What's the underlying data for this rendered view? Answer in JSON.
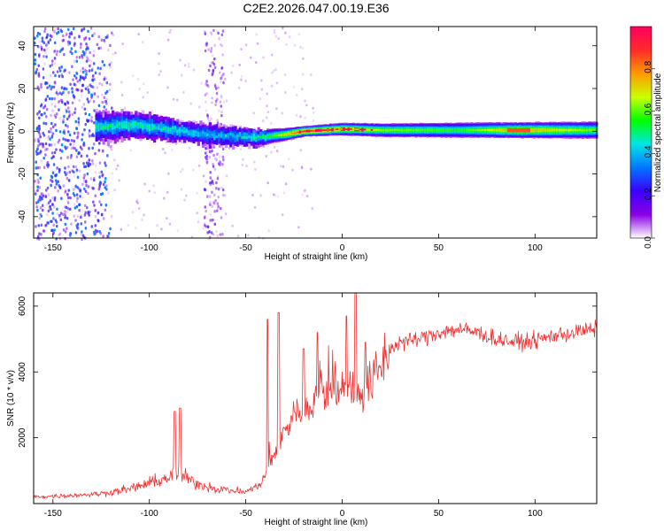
{
  "colors": {
    "snr_line": "#f03030",
    "colormap": [
      "#ffffff",
      "#8a00e6",
      "#3a00ff",
      "#0077ff",
      "#00e6e6",
      "#00ff00",
      "#ccff00",
      "#ff9900",
      "#ff2a2a",
      "#ff0060"
    ]
  },
  "chart_data": [
    {
      "type": "heatmap",
      "title": "C2E2.2026.047.00.19.E36",
      "xlabel": "Height of straight line (km)",
      "ylabel": "Frequency (Hz)",
      "xlim": [
        -160,
        132
      ],
      "ylim": [
        -50,
        49
      ],
      "xticks": [
        "-150",
        "-100",
        "-50",
        "0",
        "50",
        "100"
      ],
      "xtick_values": [
        -150,
        -100,
        -50,
        0,
        50,
        100
      ],
      "yticks": [
        "-40",
        "-20",
        "0",
        "20",
        "40"
      ],
      "ytick_values": [
        -40,
        -20,
        0,
        20,
        40
      ],
      "colorbar": {
        "label": "Normalized spectral amplitude",
        "range": [
          0,
          1
        ],
        "ticks": [
          "0.0",
          "0.2",
          "0.4",
          "0.6",
          "0.8"
        ],
        "tick_values": [
          0,
          0.2,
          0.4,
          0.6,
          0.8
        ]
      },
      "band": {
        "center_hz": [
          [
            -125,
            2
          ],
          [
            -110,
            3
          ],
          [
            -95,
            1.5
          ],
          [
            -80,
            -0.5
          ],
          [
            -65,
            -2
          ],
          [
            -55,
            -2.5
          ],
          [
            -45,
            -3
          ],
          [
            -30,
            -1.5
          ],
          [
            -20,
            0
          ],
          [
            -10,
            0.5
          ],
          [
            0,
            1
          ],
          [
            20,
            0.5
          ],
          [
            60,
            0.5
          ],
          [
            132,
            0.5
          ]
        ],
        "halfwidth_hz": [
          [
            -125,
            7
          ],
          [
            -100,
            6
          ],
          [
            -80,
            5
          ],
          [
            -60,
            5
          ],
          [
            -45,
            4
          ],
          [
            -30,
            3
          ],
          [
            -20,
            2.5
          ],
          [
            0,
            3
          ],
          [
            60,
            3.5
          ],
          [
            132,
            4
          ]
        ],
        "peak_amplitude": [
          [
            -125,
            0.45
          ],
          [
            -100,
            0.45
          ],
          [
            -60,
            0.35
          ],
          [
            -40,
            0.5
          ],
          [
            -20,
            0.95
          ],
          [
            0,
            0.8
          ],
          [
            20,
            0.65
          ],
          [
            60,
            0.55
          ],
          [
            90,
            0.8
          ],
          [
            132,
            0.6
          ]
        ]
      },
      "noise_region_km": [
        [
          -160,
          -120
        ],
        [
          -72,
          -62
        ]
      ]
    },
    {
      "type": "line",
      "xlabel": "Height of straight line (km)",
      "ylabel": "SNR (10 * v/v)",
      "xlim": [
        -160,
        132
      ],
      "ylim": [
        0,
        6400
      ],
      "xticks": [
        "-150",
        "-100",
        "-50",
        "0",
        "50",
        "100"
      ],
      "xtick_values": [
        -150,
        -100,
        -50,
        0,
        50,
        100
      ],
      "yticks": [
        "2000",
        "4000",
        "6000"
      ],
      "ytick_values": [
        2000,
        4000,
        6000
      ],
      "series": [
        {
          "name": "SNR",
          "envelope": [
            [
              -160,
              200
            ],
            [
              -140,
              250
            ],
            [
              -125,
              300
            ],
            [
              -110,
              450
            ],
            [
              -95,
              700
            ],
            [
              -85,
              900
            ],
            [
              -75,
              600
            ],
            [
              -65,
              450
            ],
            [
              -50,
              350
            ],
            [
              -42,
              600
            ],
            [
              -35,
              1600
            ],
            [
              -30,
              2200
            ],
            [
              -25,
              2700
            ],
            [
              -20,
              2900
            ],
            [
              -10,
              3300
            ],
            [
              -5,
              3500
            ],
            [
              0,
              3600
            ],
            [
              5,
              3500
            ],
            [
              10,
              3400
            ],
            [
              15,
              3700
            ],
            [
              20,
              4200
            ],
            [
              25,
              4700
            ],
            [
              30,
              4900
            ],
            [
              40,
              5000
            ],
            [
              50,
              5200
            ],
            [
              60,
              5300
            ],
            [
              70,
              5200
            ],
            [
              80,
              5000
            ],
            [
              90,
              4900
            ],
            [
              100,
              4950
            ],
            [
              110,
              5100
            ],
            [
              120,
              5200
            ],
            [
              132,
              5300
            ]
          ],
          "spikes": [
            [
              -87,
              2800
            ],
            [
              -84,
              2900
            ],
            [
              -39,
              5600
            ],
            [
              -33,
              5800
            ],
            [
              -20,
              4700
            ],
            [
              -13,
              5200
            ],
            [
              -7,
              4800
            ],
            [
              2,
              5700
            ],
            [
              7,
              6400
            ],
            [
              12,
              4900
            ]
          ]
        }
      ]
    }
  ]
}
